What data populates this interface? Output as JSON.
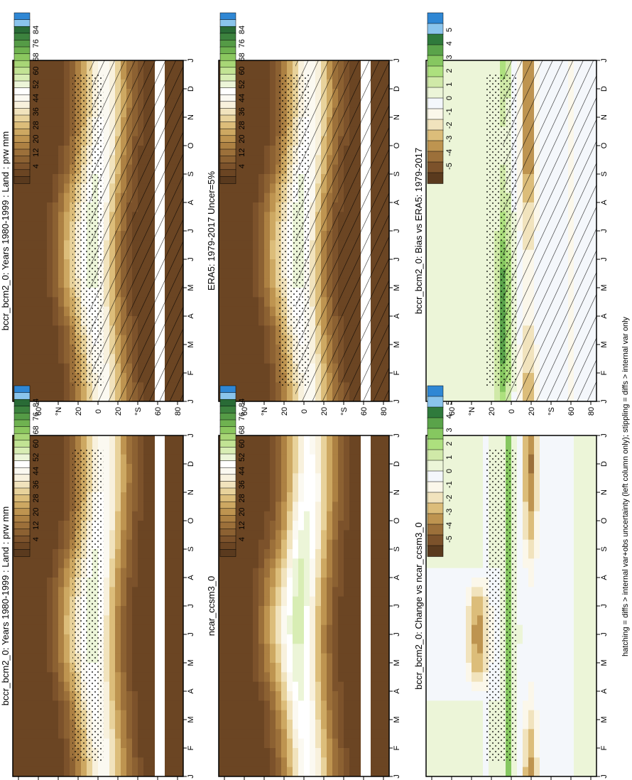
{
  "figure": {
    "footnote": "hatching = diffs > internal var+obs uncertainty (left column only); stippling = diffs > internal var only"
  },
  "colors": {
    "brown_to_blue": [
      "#5a3a1e",
      "#6b4523",
      "#7c522b",
      "#8c6132",
      "#9c703a",
      "#ad8143",
      "#be9450",
      "#cda862",
      "#dcbd7a",
      "#e8d29b",
      "#f1e3bd",
      "#f8f1dd",
      "#fbf9f1",
      "#ffffff",
      "#ecf5d8",
      "#d8edb4",
      "#c2e394",
      "#a8d676",
      "#8bc75f",
      "#6fb250",
      "#559b46",
      "#3c823e",
      "#296b36",
      "#8ac4ec",
      "#2f87d4"
    ],
    "diff": [
      "#5a3a1e",
      "#7c522b",
      "#9c703a",
      "#be9450",
      "#dcbd7a",
      "#f1e3bd",
      "#fbf7ea",
      "#f4f7fb",
      "#ecf5d8",
      "#d0e9a8",
      "#ade07e",
      "#86c760",
      "#5aa34a",
      "#2f7a3c",
      "#8ac4ec",
      "#2f87d4"
    ]
  },
  "chart_data": [
    {
      "type": "heatmap",
      "panel": "bias",
      "title": "bccr_bcm2_0: Bias vs ERA5: 1979-2017",
      "x_ticks": [
        "J",
        "F",
        "M",
        "A",
        "M",
        "J",
        "J",
        "A",
        "S",
        "O",
        "N",
        "D",
        "J"
      ],
      "y_ticks": [
        "80",
        "60",
        "°N",
        "20",
        "0",
        "20",
        "°S",
        "60",
        "80"
      ],
      "colorbar": [
        "5",
        "4",
        "3",
        "2",
        "1",
        "0",
        "-1",
        "-2",
        "-3",
        "-4",
        "-5"
      ],
      "hatching": true,
      "stippling": true
    },
    {
      "type": "heatmap",
      "panel": "change",
      "title": "bccr_bcm2_0: Change vs ncar_ccsm3_0",
      "x_ticks": [
        "J",
        "F",
        "M",
        "A",
        "M",
        "J",
        "J",
        "A",
        "S",
        "O",
        "N",
        "D",
        "J"
      ],
      "y_ticks": [
        "80",
        "60",
        "°N",
        "20",
        "0",
        "20",
        "°S",
        "60",
        "80"
      ],
      "colorbar": [
        "5",
        "4",
        "3",
        "2",
        "1",
        "0",
        "-1",
        "-2",
        "-3",
        "-4",
        "-5"
      ],
      "hatching": false,
      "stippling": true
    },
    {
      "type": "heatmap",
      "panel": "model_left",
      "title": "bccr_bcm2_0: Years 1980-1999 : Land : prw mm",
      "x_ticks": [
        "J",
        "F",
        "M",
        "A",
        "M",
        "J",
        "J",
        "A",
        "S",
        "O",
        "N",
        "D",
        "J"
      ],
      "y_ticks": [
        "80",
        "60",
        "°N",
        "20",
        "0",
        "20",
        "°S",
        "60",
        "80"
      ],
      "colorbar": [
        "84",
        "76",
        "68",
        "60",
        "52",
        "44",
        "36",
        "28",
        "20",
        "12",
        "4"
      ],
      "hatching": true,
      "stippling": true
    },
    {
      "type": "heatmap",
      "panel": "model_right",
      "title": "bccr_bcm2_0: Years 1980-1999 : Land : prw mm",
      "x_ticks": [
        "J",
        "F",
        "M",
        "A",
        "M",
        "J",
        "J",
        "A",
        "S",
        "O",
        "N",
        "D",
        "J"
      ],
      "y_ticks": [
        "80",
        "60",
        "°N",
        "20",
        "0",
        "20",
        "°S",
        "60",
        "80"
      ],
      "colorbar": [
        "84",
        "76",
        "68",
        "60",
        "52",
        "44",
        "36",
        "28",
        "20",
        "12",
        "4"
      ],
      "hatching": false,
      "stippling": true
    },
    {
      "type": "heatmap",
      "panel": "obs",
      "title": "ERA5: 1979-2017 Uncer=5%",
      "x_ticks": [
        "J",
        "F",
        "M",
        "A",
        "M",
        "J",
        "J",
        "A",
        "S",
        "O",
        "N",
        "D",
        "J"
      ],
      "y_ticks": [
        "80",
        "60",
        "°N",
        "20",
        "0",
        "20",
        "°S",
        "60",
        "80"
      ],
      "colorbar": [
        "84",
        "76",
        "68",
        "60",
        "52",
        "44",
        "36",
        "28",
        "20",
        "12",
        "4"
      ],
      "hatching": true,
      "stippling": true
    },
    {
      "type": "heatmap",
      "panel": "ref",
      "title": "ncar_ccsm3_0",
      "x_ticks": [
        "J",
        "F",
        "M",
        "A",
        "M",
        "J",
        "J",
        "A",
        "S",
        "O",
        "N",
        "D",
        "J"
      ],
      "y_ticks": [
        "80",
        "60",
        "°N",
        "20",
        "0",
        "20",
        "°S",
        "60",
        "80"
      ],
      "colorbar": [
        "84",
        "76",
        "68",
        "60",
        "52",
        "44",
        "36",
        "28",
        "20",
        "12",
        "4"
      ],
      "hatching": false,
      "stippling": false
    }
  ]
}
